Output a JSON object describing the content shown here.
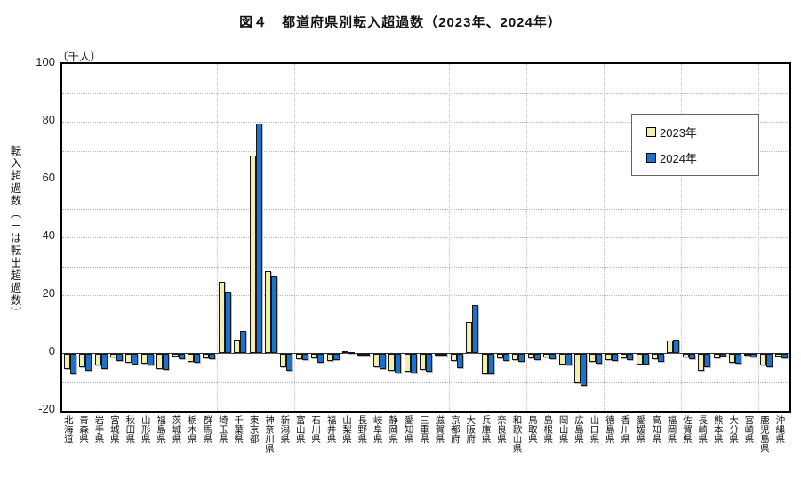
{
  "title": "図４　都道府県別転入超過数（2023年、2024年）",
  "y_axis": {
    "unit": "（千人）",
    "label": "転入超過数（－は転出超過数）",
    "ticks": [
      100,
      80,
      60,
      40,
      20,
      0,
      -20
    ]
  },
  "legend": [
    {
      "label": "2023年",
      "color": "#F2EEAE"
    },
    {
      "label": "2024年",
      "color": "#1A72CC"
    }
  ],
  "chart_data": {
    "type": "bar",
    "title": "図４　都道府県別転入超過数（2023年、2024年）",
    "ylabel": "転入超過数（－は転出超過数）",
    "unit": "千人",
    "ylim": [
      -20,
      100
    ],
    "grid": {
      "horizontal_interval": 10,
      "vertical_every_categories": 5
    },
    "legend_position": "upper right",
    "categories": [
      "北海道",
      "青森県",
      "岩手県",
      "宮城県",
      "秋田県",
      "山形県",
      "福島県",
      "茨城県",
      "栃木県",
      "群馬県",
      "埼玉県",
      "千葉県",
      "東京都",
      "神奈川県",
      "新潟県",
      "富山県",
      "石川県",
      "福井県",
      "山梨県",
      "長野県",
      "岐阜県",
      "静岡県",
      "愛知県",
      "三重県",
      "滋賀県",
      "京都府",
      "大阪府",
      "兵庫県",
      "奈良県",
      "和歌山県",
      "鳥取県",
      "島根県",
      "岡山県",
      "広島県",
      "山口県",
      "徳島県",
      "香川県",
      "愛媛県",
      "高知県",
      "福岡県",
      "佐賀県",
      "長崎県",
      "熊本県",
      "大分県",
      "宮崎県",
      "鹿児島県",
      "沖縄県"
    ],
    "series": [
      {
        "name": "2023年",
        "color": "#F2EEAE",
        "values": [
          -5.2,
          -4.6,
          -4.0,
          -1.2,
          -3.1,
          -3.4,
          -5.3,
          -0.9,
          -2.8,
          -1.5,
          24.5,
          4.7,
          68.3,
          28.4,
          -4.6,
          -1.8,
          -1.5,
          -2.6,
          0.5,
          -0.5,
          -4.5,
          -5.9,
          -6.2,
          -5.5,
          -0.3,
          -2.5,
          10.7,
          -7.0,
          -1.4,
          -2.2,
          -1.5,
          -1.3,
          -3.6,
          -10.3,
          -2.8,
          -2.1,
          -1.6,
          -3.6,
          -1.9,
          4.4,
          -1.1,
          -5.9,
          -1.4,
          -3.2,
          -0.7,
          -3.9,
          -0.8
        ]
      },
      {
        "name": "2024年",
        "color": "#1A72CC",
        "values": [
          -7.0,
          -5.8,
          -5.2,
          -2.5,
          -3.7,
          -3.9,
          -5.6,
          -1.9,
          -3.1,
          -1.8,
          21.2,
          7.8,
          79.3,
          26.8,
          -5.8,
          -2.1,
          -3.1,
          -2.0,
          0.4,
          -0.7,
          -5.2,
          -6.7,
          -6.7,
          -6.2,
          -0.6,
          -4.9,
          16.6,
          -7.2,
          -2.5,
          -2.9,
          -2.2,
          -1.8,
          -4.0,
          -11.0,
          -3.4,
          -2.5,
          -2.3,
          -3.8,
          -2.8,
          4.7,
          -1.8,
          -4.6,
          -1.0,
          -3.5,
          -1.1,
          -4.6,
          -1.5
        ]
      }
    ]
  }
}
